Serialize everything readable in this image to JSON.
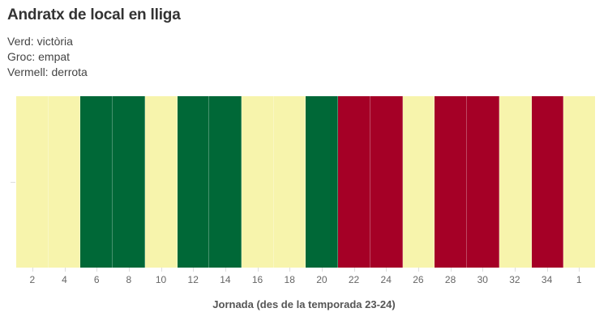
{
  "header": {
    "title": "Andratx de local en lliga",
    "legend": [
      "Verd: victòria",
      "Groc: empat",
      "Vermell: derrota"
    ]
  },
  "colors": {
    "victoria": "#006837",
    "empat": "#f7f4ac",
    "derrota": "#a50026"
  },
  "chart_data": {
    "type": "heatmap",
    "title": "Andratx de local en lliga",
    "subtitle": [
      "Verd: victòria",
      "Groc: empat",
      "Vermell: derrota"
    ],
    "xlabel": "Jornada (des de la temporada 23-24)",
    "ylabel": "",
    "categories": [
      "2",
      "4",
      "6",
      "8",
      "10",
      "12",
      "14",
      "16",
      "18",
      "20",
      "22",
      "24",
      "26",
      "28",
      "30",
      "32",
      "34",
      "1"
    ],
    "results": [
      "empat",
      "empat",
      "victoria",
      "victoria",
      "empat",
      "victoria",
      "victoria",
      "empat",
      "empat",
      "victoria",
      "derrota",
      "derrota",
      "empat",
      "derrota",
      "derrota",
      "empat",
      "derrota",
      "empat"
    ],
    "values": [
      0,
      0,
      1,
      1,
      0,
      1,
      1,
      0,
      0,
      1,
      -1,
      -1,
      0,
      -1,
      -1,
      0,
      -1,
      0
    ],
    "value_legend": {
      "1": "victòria (verd)",
      "0": "empat (groc)",
      "-1": "derrota (vermell)"
    },
    "grid": false,
    "legend_position": "top-left text"
  },
  "xaxis": {
    "title": "Jornada (des de la temporada 23-24)",
    "ticks": [
      "2",
      "4",
      "6",
      "8",
      "10",
      "12",
      "14",
      "16",
      "18",
      "20",
      "22",
      "24",
      "26",
      "28",
      "30",
      "32",
      "34",
      "1"
    ]
  }
}
